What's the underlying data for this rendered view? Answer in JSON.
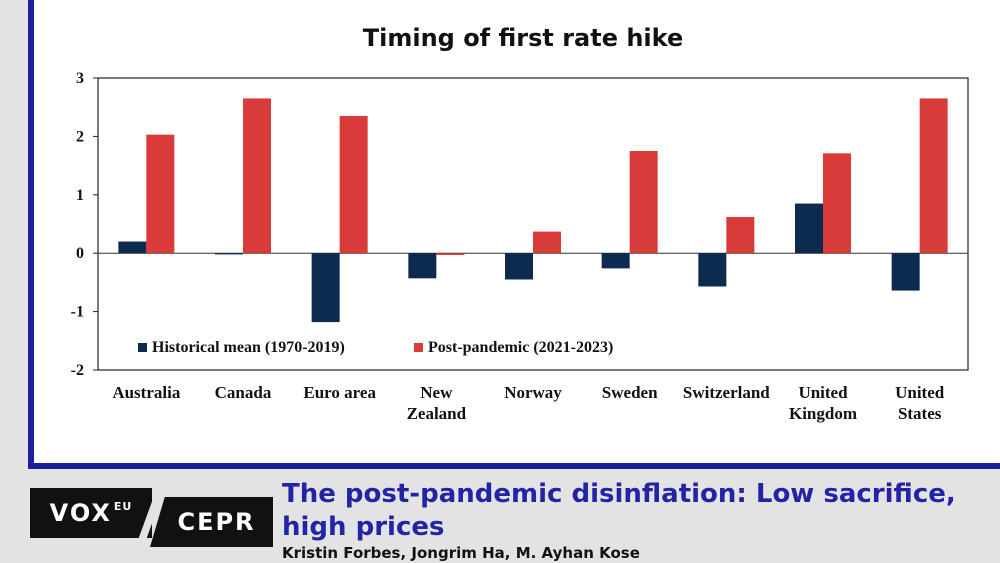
{
  "chart_data": {
    "type": "bar",
    "title": "Timing of first rate hike",
    "categories": [
      [
        "Australia"
      ],
      [
        "Canada"
      ],
      [
        "Euro area"
      ],
      [
        "New",
        "Zealand"
      ],
      [
        "Norway"
      ],
      [
        "Sweden"
      ],
      [
        "Switzerland"
      ],
      [
        "United",
        "Kingdom"
      ],
      [
        "United",
        "States"
      ]
    ],
    "series": [
      {
        "name": "Historical mean (1970-2019)",
        "color": "#0d2b4e",
        "values": [
          0.2,
          -0.02,
          -1.18,
          -0.43,
          -0.45,
          -0.26,
          -0.57,
          0.85,
          -0.64
        ]
      },
      {
        "name": "Post-pandemic (2021-2023)",
        "color": "#d93a3a",
        "values": [
          2.03,
          2.65,
          2.35,
          -0.03,
          0.37,
          1.75,
          0.62,
          1.71,
          2.65
        ]
      }
    ],
    "ylim": [
      -2,
      3
    ],
    "yticks": [
      -2,
      -1,
      0,
      1,
      2,
      3
    ],
    "xlabel": "",
    "ylabel": "",
    "legend": "bottom-left inside plot",
    "grid": false
  },
  "footer": {
    "logo_vox": "VOX",
    "logo_eu": "EU",
    "logo_cepr": "CEPR",
    "article_title": "The post-pandemic disinflation: Low sacrifice, high prices",
    "authors": "Kristin Forbes, Jongrim Ha, M. Ayhan Kose"
  },
  "colors": {
    "accent": "#1b1f9c",
    "title_blue": "#2323a8"
  }
}
